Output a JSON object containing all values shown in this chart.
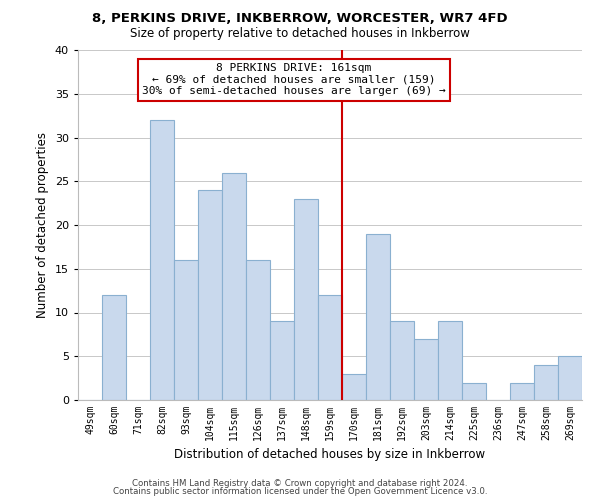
{
  "title": "8, PERKINS DRIVE, INKBERROW, WORCESTER, WR7 4FD",
  "subtitle": "Size of property relative to detached houses in Inkberrow",
  "xlabel": "Distribution of detached houses by size in Inkberrow",
  "ylabel": "Number of detached properties",
  "bar_labels": [
    "49sqm",
    "60sqm",
    "71sqm",
    "82sqm",
    "93sqm",
    "104sqm",
    "115sqm",
    "126sqm",
    "137sqm",
    "148sqm",
    "159sqm",
    "170sqm",
    "181sqm",
    "192sqm",
    "203sqm",
    "214sqm",
    "225sqm",
    "236sqm",
    "247sqm",
    "258sqm",
    "269sqm"
  ],
  "bar_values": [
    0,
    12,
    0,
    32,
    16,
    24,
    26,
    16,
    9,
    23,
    12,
    3,
    19,
    9,
    7,
    9,
    2,
    0,
    2,
    4,
    5
  ],
  "bar_color": "#c9d9ed",
  "bar_edge_color": "#8ab0d0",
  "annotation_title": "8 PERKINS DRIVE: 161sqm",
  "annotation_line1": "← 69% of detached houses are smaller (159)",
  "annotation_line2": "30% of semi-detached houses are larger (69) →",
  "annotation_box_color": "#ffffff",
  "annotation_box_edge": "#cc0000",
  "vline_color": "#cc0000",
  "vline_index": 10.5,
  "ylim": [
    0,
    40
  ],
  "yticks": [
    0,
    5,
    10,
    15,
    20,
    25,
    30,
    35,
    40
  ],
  "footer1": "Contains HM Land Registry data © Crown copyright and database right 2024.",
  "footer2": "Contains public sector information licensed under the Open Government Licence v3.0.",
  "bg_color": "#ffffff",
  "grid_color": "#c8c8c8"
}
